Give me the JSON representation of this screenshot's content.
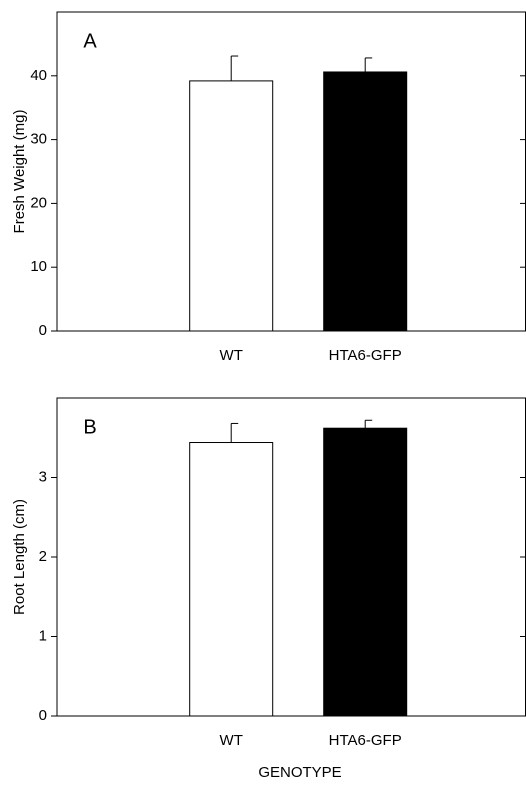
{
  "chart_data": [
    {
      "type": "bar",
      "annotation": "A",
      "ylabel": "Fresh Weight (mg)",
      "categories": [
        "WT",
        "HTA6-GFP"
      ],
      "values": [
        39.2,
        40.6
      ],
      "errors": [
        3.9,
        2.2
      ],
      "colors": [
        "#ffffff",
        "#000000"
      ],
      "ylim": [
        0,
        50
      ],
      "yticks": [
        0,
        10,
        20,
        30,
        40
      ]
    },
    {
      "type": "bar",
      "annotation": "B",
      "ylabel": "Root Length (cm)",
      "xlabel": "GENOTYPE",
      "categories": [
        "WT",
        "HTA6-GFP"
      ],
      "values": [
        3.44,
        3.62
      ],
      "errors": [
        0.24,
        0.1
      ],
      "colors": [
        "#ffffff",
        "#000000"
      ],
      "ylim": [
        0,
        4
      ],
      "yticks": [
        0,
        1,
        2,
        3
      ]
    }
  ]
}
